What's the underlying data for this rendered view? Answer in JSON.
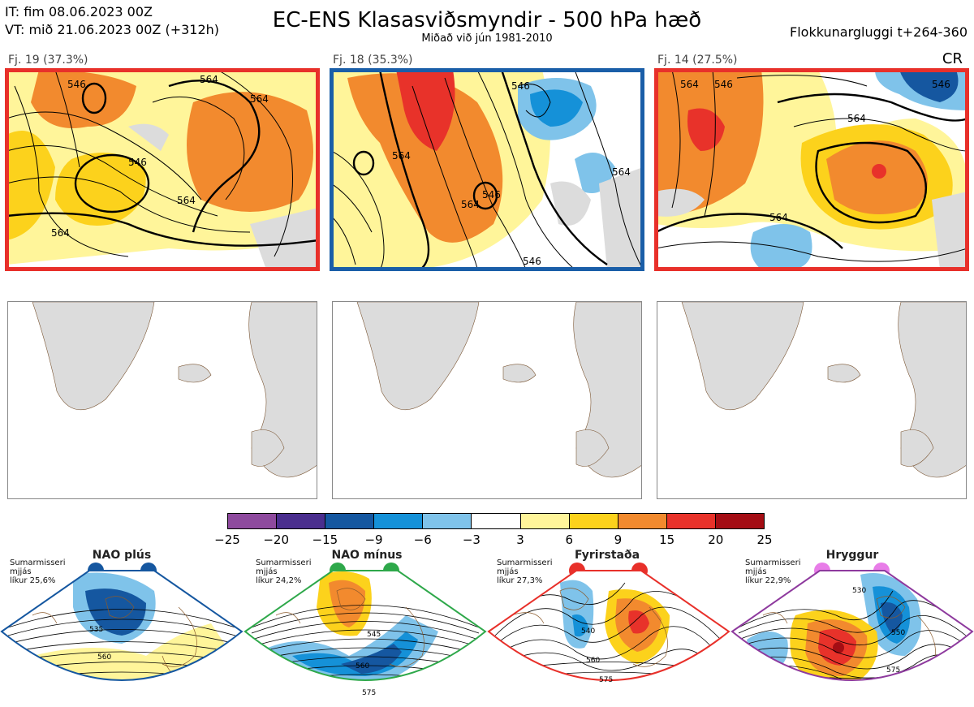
{
  "header": {
    "init_time": "IT: fim 08.06.2023 00Z",
    "valid_time": "VT: mið 21.06.2023 00Z  (+312h)",
    "title": "EC-ENS Klasasviðsmyndir - 500 hPa hæð",
    "subtitle": "Miðað við jún 1981-2010",
    "window": "Flokkunargluggi t+264-360",
    "corner_tag": "CR"
  },
  "clusters": [
    {
      "label": "Fj. 19 (37.3%)",
      "frame_color": "#e8302a",
      "contours": [
        "564",
        "546",
        "564",
        "546",
        "564",
        "564"
      ]
    },
    {
      "label": "Fj. 18 (35.3%)",
      "frame_color": "#1a5ea8",
      "contours": [
        "564",
        "546",
        "564",
        "546",
        "564",
        "546"
      ]
    },
    {
      "label": "Fj. 14 (27.5%)",
      "frame_color": "#e8302a",
      "contours": [
        "564",
        "546",
        "564",
        "546",
        "564"
      ]
    }
  ],
  "colorbar": {
    "colors": [
      "#8e4a9e",
      "#4a2e8e",
      "#1557a0",
      "#1591d8",
      "#7fc3ea",
      "#ffffff",
      "#fff59a",
      "#fcd21c",
      "#f28a2e",
      "#e8322a",
      "#a40d14"
    ],
    "ticks": [
      "−25",
      "−20",
      "−15",
      "−9",
      "−6",
      "−3",
      "3",
      "6",
      "9",
      "15",
      "20",
      "25"
    ]
  },
  "regimes": [
    {
      "name": "NAO plús",
      "info": [
        "Sumarmisseri",
        "mjjás",
        "líkur 25,6%"
      ],
      "color": "#1557a0",
      "contours": [
        "535",
        "560"
      ]
    },
    {
      "name": "NAO mínus",
      "info": [
        "Sumarmisseri",
        "mjjás",
        "líkur 24,2%"
      ],
      "color": "#2ea84a",
      "contours": [
        "545",
        "560",
        "575"
      ]
    },
    {
      "name": "Fyrirstaða",
      "info": [
        "Sumarmisseri",
        "mjjás",
        "líkur 27,3%"
      ],
      "color": "#e8302a",
      "contours": [
        "540",
        "560",
        "575"
      ]
    },
    {
      "name": "Hryggur",
      "info": [
        "Sumarmisseri",
        "mjjás",
        "líkur 22,9%"
      ],
      "color": "#e87de8",
      "contours": [
        "530",
        "550",
        "575"
      ]
    }
  ]
}
